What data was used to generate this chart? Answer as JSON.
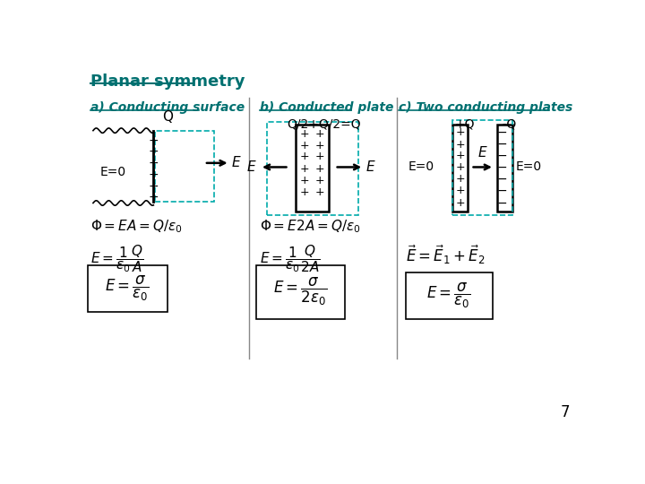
{
  "title": "Planar symmetry",
  "title_color": "#007070",
  "background_color": "#ffffff",
  "section_a_title": "a) Conducting surface",
  "section_b_title": "b) Conducted plate",
  "section_c_title": "c) Two conducting plates",
  "section_title_color": "#007070",
  "page_number": "7"
}
